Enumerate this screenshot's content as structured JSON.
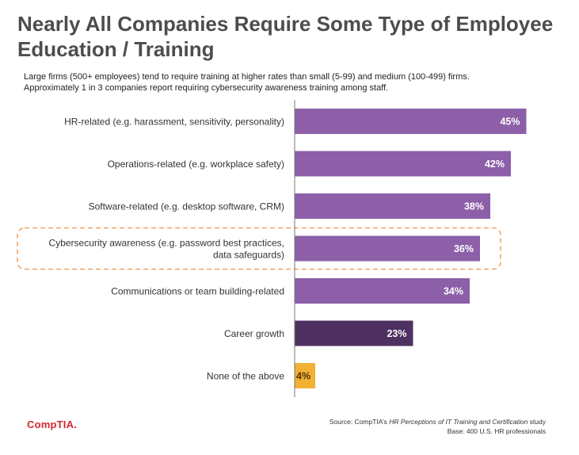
{
  "title_line1": "Nearly All Companies Require Some Type of Employee",
  "title_line2": "Education / Training",
  "subtitle_line1": "Large firms (500+ employees) tend to require training at higher rates than small (5-99) and medium (100-499) firms.",
  "subtitle_line2": "Approximately 1 in 3 companies report requiring cybersecurity awareness training among staff.",
  "logo_text": "CompTIA.",
  "source": {
    "prefix": "Source: CompTIA’s ",
    "study_name": "HR Perceptions of IT Training and Certification",
    "suffix": " study",
    "base": "Base: 400 U.S. HR professionals"
  },
  "colors": {
    "purple": "#8c5fa8",
    "dark_purple": "#4e3061",
    "gold": "#f2b134",
    "highlight_border": "#f3a35f",
    "axis": "#777777"
  },
  "chart_data": {
    "type": "bar",
    "orientation": "horizontal",
    "title": "Nearly All Companies Require Some Type of Employee Education / Training",
    "xlim": [
      0,
      100
    ],
    "unit": "%",
    "highlighted_category": "Cybersecurity awareness (e.g. password best practices, data safeguards)",
    "categories": [
      {
        "label_lines": [
          "HR-related (e.g. harassment, sensitivity, personality)"
        ],
        "value": 45,
        "color": "purple"
      },
      {
        "label_lines": [
          "Operations-related (e.g. workplace safety)"
        ],
        "value": 42,
        "color": "purple"
      },
      {
        "label_lines": [
          "Software-related (e.g. desktop software, CRM)"
        ],
        "value": 38,
        "color": "purple"
      },
      {
        "label_lines": [
          "Cybersecurity awareness (e.g. password best practices,",
          "data safeguards)"
        ],
        "value": 36,
        "color": "purple",
        "highlight": true
      },
      {
        "label_lines": [
          "Communications or team building-related"
        ],
        "value": 34,
        "color": "purple"
      },
      {
        "label_lines": [
          "Career growth"
        ],
        "value": 23,
        "color": "dark_purple"
      },
      {
        "label_lines": [
          "None of the above"
        ],
        "value": 4,
        "color": "gold"
      }
    ]
  }
}
